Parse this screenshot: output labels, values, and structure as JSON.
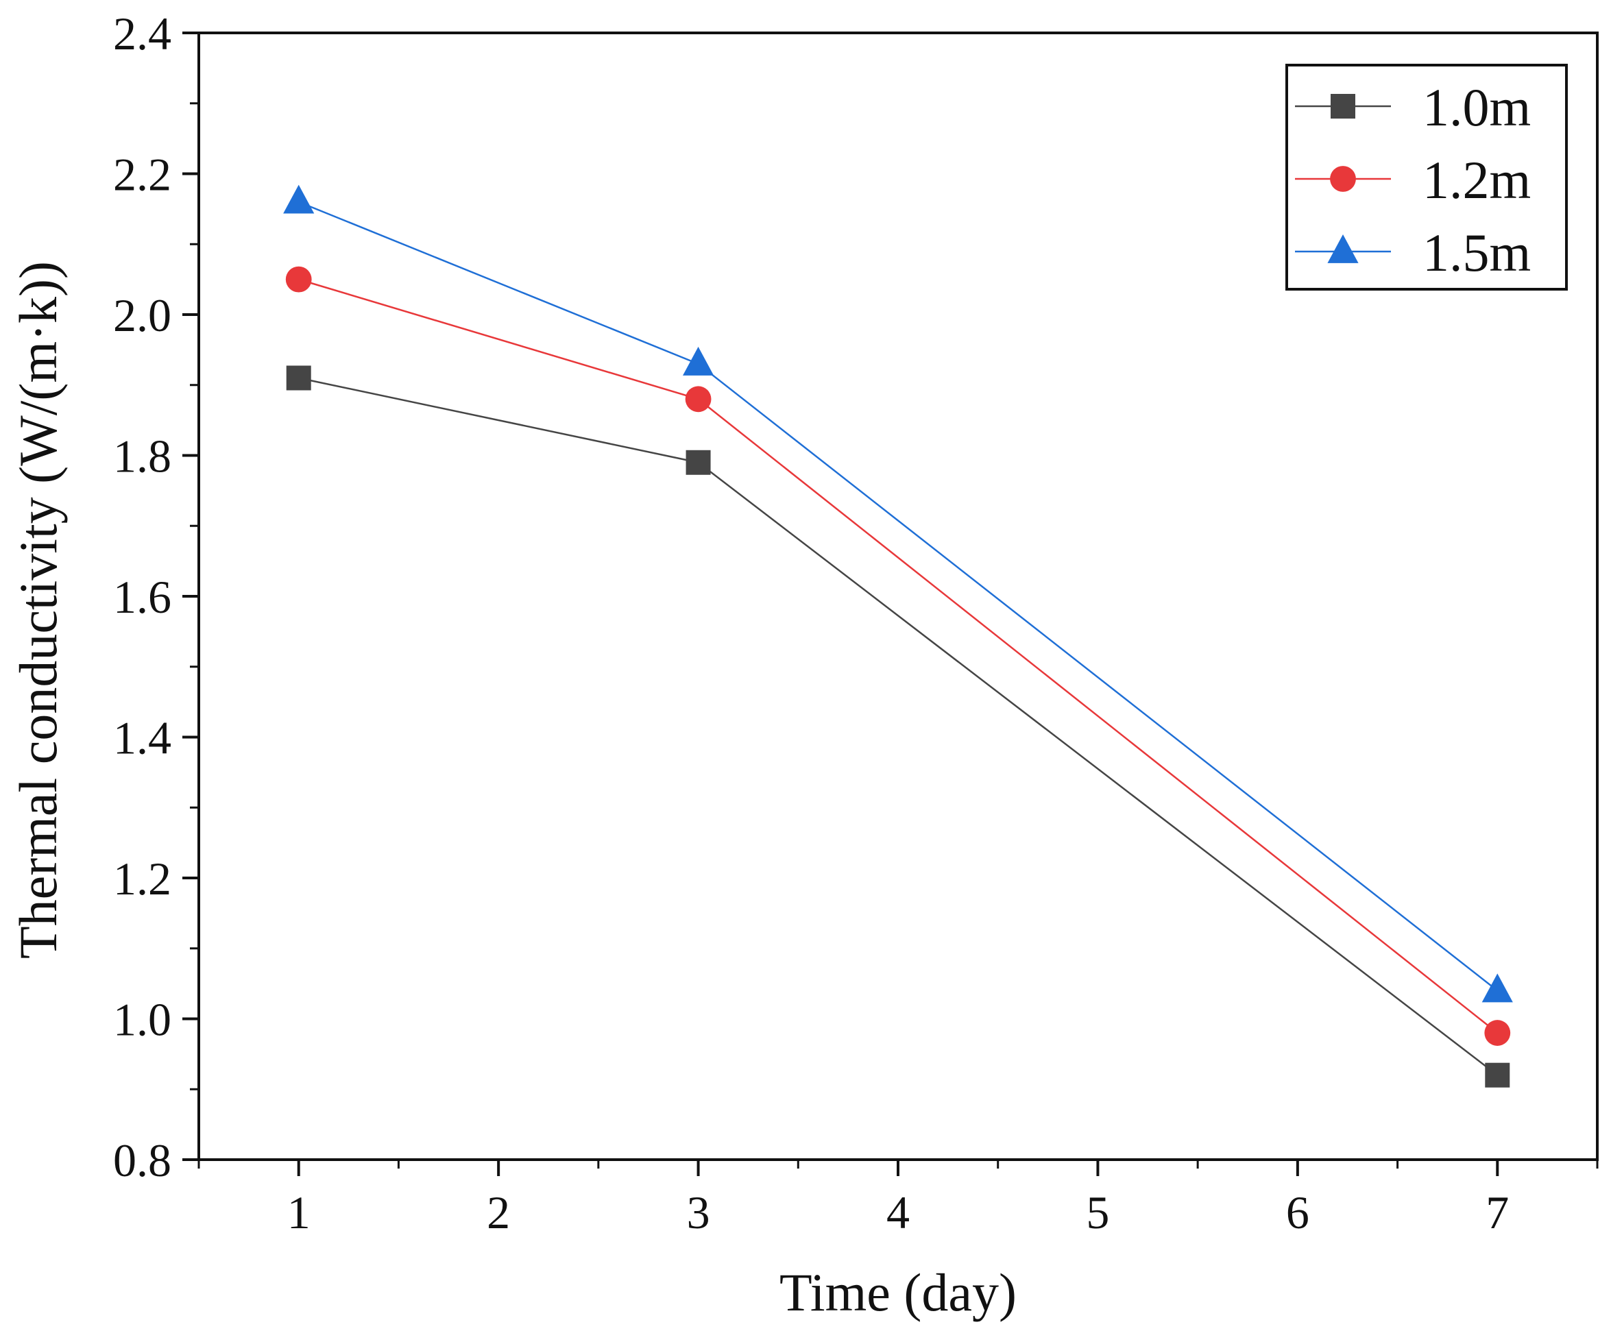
{
  "chart_data": {
    "type": "line",
    "title": "",
    "xlabel": "Time (day)",
    "ylabel": "Thermal conductivity (W/(m·k))",
    "xlim": [
      0.5,
      7.5
    ],
    "ylim": [
      0.8,
      2.4
    ],
    "xticks": [
      1,
      2,
      3,
      4,
      5,
      6,
      7
    ],
    "xtick_labels": [
      "1",
      "2",
      "3",
      "4",
      "5",
      "6",
      "7"
    ],
    "yticks": [
      0.8,
      1.0,
      1.2,
      1.4,
      1.6,
      1.8,
      2.0,
      2.2,
      2.4
    ],
    "ytick_labels": [
      "0.8",
      "1.0",
      "1.2",
      "1.4",
      "1.6",
      "1.8",
      "2.0",
      "2.2",
      "2.4"
    ],
    "grid": false,
    "legend_position": "top-right",
    "x": [
      1,
      3,
      7
    ],
    "series": [
      {
        "name": "1.0m",
        "marker": "square",
        "color": "#454545",
        "values": [
          1.91,
          1.79,
          0.92
        ]
      },
      {
        "name": "1.2m",
        "marker": "circle",
        "color": "#e8383a",
        "values": [
          2.05,
          1.88,
          0.98
        ]
      },
      {
        "name": "1.5m",
        "marker": "triangle",
        "color": "#1f6fd6",
        "values": [
          2.16,
          1.93,
          1.04
        ]
      }
    ]
  }
}
